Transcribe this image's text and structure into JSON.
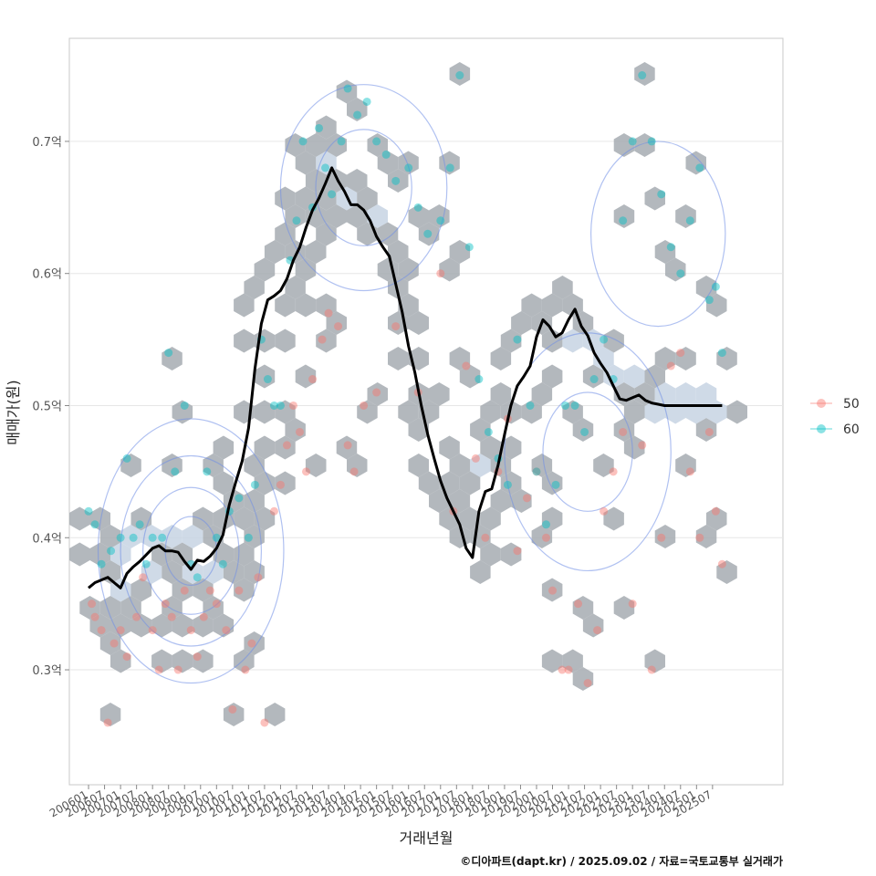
{
  "chart_data": {
    "type": "scatter",
    "xlabel": "거래년월",
    "ylabel": "매매가(원)",
    "caption": "©디아파트(dapt.kr) / 2025.09.02 / 자료=국토교통부 실거래가",
    "ylim": [
      0.213,
      0.778
    ],
    "xlim": [
      2005.4,
      2027.7
    ],
    "y_ticks": [
      {
        "value": 0.3,
        "label": "0.3억"
      },
      {
        "value": 0.4,
        "label": "0.4억"
      },
      {
        "value": 0.5,
        "label": "0.5억"
      },
      {
        "value": 0.6,
        "label": "0.6억"
      },
      {
        "value": 0.7,
        "label": "0.7억"
      }
    ],
    "x_ticks": [
      {
        "value": 2006.0,
        "label": "200601"
      },
      {
        "value": 2006.5,
        "label": "200607"
      },
      {
        "value": 2007.0,
        "label": "200701"
      },
      {
        "value": 2007.5,
        "label": "200707"
      },
      {
        "value": 2008.0,
        "label": "200801"
      },
      {
        "value": 2008.5,
        "label": "200807"
      },
      {
        "value": 2009.0,
        "label": "200901"
      },
      {
        "value": 2009.5,
        "label": "200907"
      },
      {
        "value": 2010.0,
        "label": "201001"
      },
      {
        "value": 2010.5,
        "label": "201007"
      },
      {
        "value": 2011.0,
        "label": "201101"
      },
      {
        "value": 2011.5,
        "label": "201107"
      },
      {
        "value": 2012.0,
        "label": "201201"
      },
      {
        "value": 2012.5,
        "label": "201207"
      },
      {
        "value": 2013.0,
        "label": "201301"
      },
      {
        "value": 2013.5,
        "label": "201307"
      },
      {
        "value": 2014.0,
        "label": "201401"
      },
      {
        "value": 2014.5,
        "label": "201407"
      },
      {
        "value": 2015.0,
        "label": "201501"
      },
      {
        "value": 2015.5,
        "label": "201507"
      },
      {
        "value": 2016.0,
        "label": "201601"
      },
      {
        "value": 2016.5,
        "label": "201607"
      },
      {
        "value": 2017.0,
        "label": "201701"
      },
      {
        "value": 2017.5,
        "label": "201707"
      },
      {
        "value": 2018.0,
        "label": "201801"
      },
      {
        "value": 2018.5,
        "label": "201807"
      },
      {
        "value": 2019.0,
        "label": "201901"
      },
      {
        "value": 2019.5,
        "label": "201907"
      },
      {
        "value": 2020.0,
        "label": "202001"
      },
      {
        "value": 2020.5,
        "label": "202007"
      },
      {
        "value": 2021.0,
        "label": "202101"
      },
      {
        "value": 2021.5,
        "label": "202107"
      },
      {
        "value": 2022.0,
        "label": "202201"
      },
      {
        "value": 2022.5,
        "label": "202207"
      },
      {
        "value": 2023.0,
        "label": "202301"
      },
      {
        "value": 2023.5,
        "label": "202307"
      },
      {
        "value": 2024.0,
        "label": "202401"
      },
      {
        "value": 2024.5,
        "label": "202407"
      },
      {
        "value": 2025.0,
        "label": "202501"
      },
      {
        "value": 2025.5,
        "label": "202507"
      }
    ],
    "legend": {
      "position": "right",
      "entries": [
        {
          "label": "50",
          "color": "#f8766d"
        },
        {
          "label": "60",
          "color": "#00bfc4"
        }
      ]
    },
    "colors": {
      "hex": "#a6abb2",
      "hex_light": "#c7d3e3",
      "trend": "#000000",
      "contour": "#6f8ee6",
      "grid": "#e6e6e6",
      "panel_border": "#c8c8c8"
    },
    "trend_line": {
      "name": "moving average",
      "x": [
        2006.0,
        2006.2,
        2006.4,
        2006.6,
        2006.8,
        2007.0,
        2007.2,
        2007.4,
        2007.6,
        2007.8,
        2008.0,
        2008.2,
        2008.4,
        2008.6,
        2008.8,
        2009.0,
        2009.2,
        2009.4,
        2009.6,
        2009.8,
        2010.0,
        2010.2,
        2010.4,
        2010.6,
        2010.8,
        2011.0,
        2011.2,
        2011.4,
        2011.6,
        2011.8,
        2012.0,
        2012.2,
        2012.4,
        2012.6,
        2012.8,
        2013.0,
        2013.2,
        2013.4,
        2013.6,
        2013.8,
        2014.0,
        2014.2,
        2014.4,
        2014.6,
        2014.8,
        2015.0,
        2015.2,
        2015.4,
        2015.6,
        2015.8,
        2016.0,
        2016.2,
        2016.4,
        2016.6,
        2016.8,
        2017.0,
        2017.2,
        2017.4,
        2017.6,
        2017.8,
        2018.0,
        2018.2,
        2018.4,
        2018.6,
        2018.8,
        2019.0,
        2019.2,
        2019.4,
        2019.6,
        2019.8,
        2020.0,
        2020.2,
        2020.4,
        2020.6,
        2020.8,
        2021.0,
        2021.2,
        2021.4,
        2021.6,
        2021.8,
        2022.0,
        2022.2,
        2022.4,
        2022.6,
        2022.8,
        2023.0,
        2023.2,
        2023.4,
        2023.6,
        2023.8,
        2024.0,
        2024.2,
        2024.4,
        2024.6,
        2024.8,
        2025.0,
        2025.2,
        2025.4,
        2025.6,
        2025.8
      ],
      "y": [
        0.362,
        0.366,
        0.368,
        0.37,
        0.366,
        0.362,
        0.373,
        0.378,
        0.382,
        0.387,
        0.392,
        0.394,
        0.39,
        0.39,
        0.389,
        0.382,
        0.376,
        0.383,
        0.382,
        0.386,
        0.392,
        0.402,
        0.425,
        0.442,
        0.458,
        0.483,
        0.528,
        0.562,
        0.58,
        0.583,
        0.587,
        0.596,
        0.61,
        0.62,
        0.635,
        0.648,
        0.657,
        0.668,
        0.68,
        0.67,
        0.662,
        0.652,
        0.652,
        0.648,
        0.64,
        0.628,
        0.62,
        0.613,
        0.592,
        0.571,
        0.545,
        0.525,
        0.5,
        0.478,
        0.46,
        0.443,
        0.43,
        0.42,
        0.41,
        0.392,
        0.385,
        0.42,
        0.435,
        0.437,
        0.455,
        0.478,
        0.5,
        0.515,
        0.522,
        0.53,
        0.552,
        0.565,
        0.56,
        0.552,
        0.555,
        0.565,
        0.573,
        0.56,
        0.553,
        0.54,
        0.532,
        0.525,
        0.515,
        0.505,
        0.504,
        0.506,
        0.508,
        0.504,
        0.502,
        0.501,
        0.5,
        0.5,
        0.5,
        0.5,
        0.5,
        0.5,
        0.5,
        0.5,
        0.5,
        0.5
      ]
    },
    "series": [
      {
        "name": "50",
        "x": [
          2006.1,
          2006.2,
          2006.4,
          2006.6,
          2006.8,
          2007.0,
          2007.2,
          2007.5,
          2007.7,
          2008.0,
          2008.2,
          2008.4,
          2008.6,
          2008.8,
          2009.0,
          2009.2,
          2009.4,
          2009.6,
          2009.8,
          2010.0,
          2010.3,
          2010.5,
          2010.7,
          2010.9,
          2011.1,
          2011.3,
          2011.5,
          2011.8,
          2012.0,
          2012.2,
          2012.4,
          2012.6,
          2012.8,
          2013.0,
          2013.3,
          2013.5,
          2013.8,
          2014.1,
          2014.3,
          2014.6,
          2015.0,
          2015.6,
          2016.3,
          2017.0,
          2017.4,
          2017.8,
          2018.1,
          2018.4,
          2018.8,
          2019.1,
          2019.4,
          2019.7,
          2020.0,
          2020.3,
          2020.5,
          2020.8,
          2021.0,
          2021.3,
          2021.6,
          2021.9,
          2022.1,
          2022.4,
          2022.7,
          2023.0,
          2023.3,
          2023.6,
          2023.9,
          2024.2,
          2024.5,
          2024.8,
          2025.1,
          2025.4,
          2025.6,
          2025.8
        ],
        "y": [
          0.35,
          0.34,
          0.33,
          0.26,
          0.32,
          0.33,
          0.31,
          0.34,
          0.37,
          0.33,
          0.3,
          0.35,
          0.34,
          0.3,
          0.36,
          0.33,
          0.31,
          0.34,
          0.36,
          0.35,
          0.33,
          0.27,
          0.36,
          0.3,
          0.32,
          0.37,
          0.26,
          0.42,
          0.44,
          0.47,
          0.5,
          0.48,
          0.45,
          0.52,
          0.55,
          0.57,
          0.56,
          0.47,
          0.45,
          0.5,
          0.51,
          0.56,
          0.51,
          0.6,
          0.42,
          0.53,
          0.46,
          0.4,
          0.45,
          0.49,
          0.39,
          0.43,
          0.45,
          0.4,
          0.36,
          0.3,
          0.3,
          0.35,
          0.29,
          0.33,
          0.42,
          0.45,
          0.48,
          0.35,
          0.47,
          0.3,
          0.4,
          0.53,
          0.54,
          0.45,
          0.4,
          0.48,
          0.42,
          0.38
        ]
      },
      {
        "name": "60",
        "x": [
          2006.0,
          2006.2,
          2006.4,
          2006.7,
          2007.0,
          2007.2,
          2007.4,
          2007.6,
          2007.8,
          2008.0,
          2008.3,
          2008.5,
          2008.7,
          2009.0,
          2009.2,
          2009.4,
          2009.7,
          2010.0,
          2010.2,
          2010.4,
          2010.7,
          2011.0,
          2011.2,
          2011.4,
          2011.6,
          2011.8,
          2012.0,
          2012.3,
          2012.5,
          2012.7,
          2013.0,
          2013.2,
          2013.4,
          2013.6,
          2013.9,
          2014.1,
          2014.4,
          2014.7,
          2015.0,
          2015.3,
          2015.6,
          2016.0,
          2016.3,
          2016.6,
          2017.0,
          2017.3,
          2017.6,
          2017.9,
          2018.2,
          2018.5,
          2018.8,
          2019.1,
          2019.4,
          2019.8,
          2020.0,
          2020.3,
          2020.6,
          2020.9,
          2021.2,
          2021.5,
          2021.8,
          2022.1,
          2022.4,
          2022.7,
          2023.0,
          2023.3,
          2023.6,
          2023.9,
          2024.2,
          2024.5,
          2024.8,
          2025.1,
          2025.4,
          2025.6,
          2025.8
        ],
        "y": [
          0.42,
          0.41,
          0.38,
          0.39,
          0.4,
          0.46,
          0.4,
          0.41,
          0.38,
          0.4,
          0.4,
          0.54,
          0.45,
          0.5,
          0.38,
          0.37,
          0.45,
          0.4,
          0.38,
          0.42,
          0.43,
          0.4,
          0.44,
          0.55,
          0.52,
          0.5,
          0.5,
          0.61,
          0.64,
          0.7,
          0.65,
          0.71,
          0.68,
          0.66,
          0.7,
          0.74,
          0.72,
          0.73,
          0.7,
          0.69,
          0.67,
          0.68,
          0.65,
          0.63,
          0.64,
          0.68,
          0.75,
          0.62,
          0.52,
          0.48,
          0.46,
          0.44,
          0.55,
          0.5,
          0.45,
          0.41,
          0.44,
          0.5,
          0.5,
          0.48,
          0.52,
          0.55,
          0.52,
          0.64,
          0.7,
          0.75,
          0.7,
          0.66,
          0.62,
          0.6,
          0.64,
          0.68,
          0.58,
          0.59,
          0.54
        ]
      }
    ]
  }
}
